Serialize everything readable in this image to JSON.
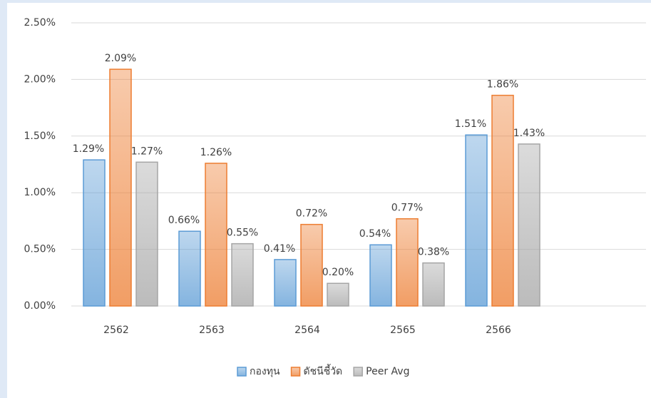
{
  "chart_data": {
    "type": "bar",
    "categories": [
      "2562",
      "2563",
      "2564",
      "2565",
      "2566"
    ],
    "series": [
      {
        "name": "กองทุน",
        "color": "#5b9bd5",
        "values": [
          1.29,
          0.66,
          0.41,
          0.54,
          1.51
        ],
        "value_labels": [
          "1.29%",
          "0.66%",
          "0.41%",
          "0.54%",
          "1.51%"
        ]
      },
      {
        "name": "ดัชนีชี้วัด",
        "color": "#ed7d31",
        "values": [
          2.09,
          1.26,
          0.72,
          0.77,
          1.86
        ],
        "value_labels": [
          "2.09%",
          "1.26%",
          "0.72%",
          "0.77%",
          "1.86%"
        ]
      },
      {
        "name": "Peer Avg",
        "color": "#a5a5a5",
        "values": [
          1.27,
          0.55,
          0.2,
          0.38,
          1.43
        ],
        "value_labels": [
          "1.27%",
          "0.55%",
          "0.20%",
          "0.38%",
          "1.43%"
        ]
      }
    ],
    "ylim": [
      0,
      2.5
    ],
    "yticks": [
      {
        "value": 0,
        "label": "0.00%"
      },
      {
        "value": 0.5,
        "label": "0.50%"
      },
      {
        "value": 1,
        "label": "1.00%"
      },
      {
        "value": 1.5,
        "label": "1.50%"
      },
      {
        "value": 2,
        "label": "2.00%"
      },
      {
        "value": 2.5,
        "label": "2.50%"
      }
    ],
    "grid": true,
    "legend": "bottom"
  }
}
